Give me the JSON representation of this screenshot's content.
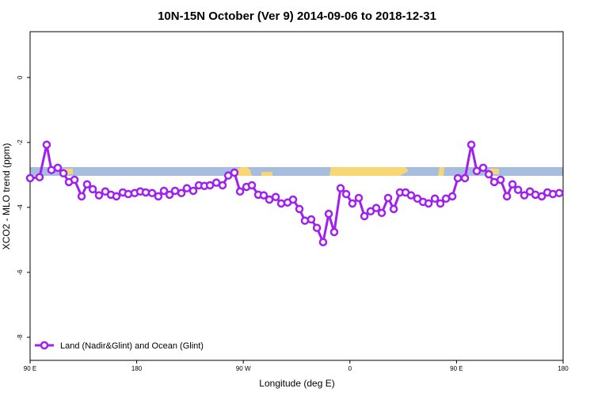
{
  "chart_data": {
    "type": "line",
    "title": "10N-15N October (Ver 9)   2014-09-06 to 2018-12-31",
    "x_label": "Longitude (deg E)",
    "y_label": "XCO2 - MLO trend (ppm)",
    "xlim": [
      90,
      450
    ],
    "ylim": [
      -8.71,
      1.41
    ],
    "xticks": [
      {
        "value": 90,
        "label": "90 E"
      },
      {
        "value": 162,
        "label": "180"
      },
      {
        "value": 234,
        "label": "90 W"
      },
      {
        "value": 306,
        "label": "0"
      },
      {
        "value": 378,
        "label": "90 E"
      },
      {
        "value": 450,
        "label": "180"
      }
    ],
    "yticks": [
      0,
      -2,
      -4,
      -6,
      -8
    ],
    "legend": "bottom-left",
    "series": [
      {
        "name": "Land (Nadir&Glint) and Ocean (Glint)",
        "color": "#a020f0",
        "x": [
          90,
          96.4,
          101.2,
          104.4,
          108.7,
          112.5,
          116.2,
          120,
          124.8,
          128.5,
          132.3,
          136.5,
          140.8,
          144.6,
          148.3,
          152.6,
          156.3,
          160.6,
          164.4,
          168.1,
          172.4,
          176.6,
          180.4,
          184.2,
          187.9,
          192.2,
          195.9,
          200.2,
          204,
          207.7,
          211.5,
          215.8,
          220,
          223.8,
          228,
          231.8,
          236.1,
          239.8,
          244.1,
          247.8,
          251.6,
          255.9,
          259.6,
          263.9,
          267.6,
          271.9,
          275.6,
          279.9,
          283.7,
          287.9,
          291.7,
          295.4,
          299.7,
          303.5,
          307.7,
          312,
          315.8,
          320,
          323.8,
          327.5,
          331.8,
          335.6,
          339.8,
          343.6,
          347.3,
          351.6,
          355.4,
          359.1,
          363.4,
          367.1,
          370.9,
          375.2,
          378.9,
          383.7,
          388,
          391.7,
          396,
          399.8,
          403.5,
          407.8,
          412.1,
          415.8,
          419.6,
          423.8,
          427.6,
          431.3,
          435.6,
          439.4,
          443.1,
          447.4
        ],
        "values": [
          -3.1,
          -3.07,
          -2.07,
          -2.85,
          -2.78,
          -2.95,
          -3.22,
          -3.15,
          -3.66,
          -3.29,
          -3.44,
          -3.63,
          -3.51,
          -3.61,
          -3.66,
          -3.54,
          -3.59,
          -3.56,
          -3.51,
          -3.54,
          -3.56,
          -3.66,
          -3.49,
          -3.61,
          -3.49,
          -3.56,
          -3.41,
          -3.49,
          -3.32,
          -3.34,
          -3.32,
          -3.24,
          -3.32,
          -3.02,
          -2.93,
          -3.51,
          -3.37,
          -3.32,
          -3.61,
          -3.63,
          -3.76,
          -3.68,
          -3.88,
          -3.85,
          -3.76,
          -4.05,
          -4.41,
          -4.37,
          -4.63,
          -5.07,
          -4.2,
          -4.76,
          -3.41,
          -3.59,
          -3.88,
          -3.71,
          -4.27,
          -4.12,
          -4.02,
          -4.17,
          -3.71,
          -4.05,
          -3.54,
          -3.54,
          -3.63,
          -3.73,
          -3.83,
          -3.88,
          -3.73,
          -3.88,
          -3.73,
          -3.66,
          -3.1,
          -3.1,
          -2.07,
          -2.88,
          -2.78,
          -2.98,
          -3.22,
          -3.15,
          -3.66,
          -3.29,
          -3.46,
          -3.63,
          -3.51,
          -3.61,
          -3.66,
          -3.54,
          -3.59,
          -3.56
        ]
      }
    ]
  }
}
